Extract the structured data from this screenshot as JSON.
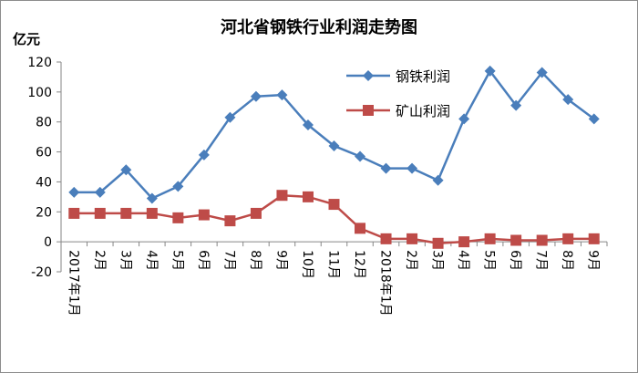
{
  "chart_data": {
    "type": "line",
    "title": "河北省钢铁行业利润走势图",
    "ylabel": "亿元",
    "xlabel": "",
    "ylim": [
      -20,
      120
    ],
    "yticks": [
      -20,
      0,
      20,
      40,
      60,
      80,
      100,
      120
    ],
    "grid": false,
    "legend_position": "top-right",
    "categories": [
      "2017年1月",
      "2月",
      "3月",
      "4月",
      "5月",
      "6月",
      "7月",
      "8月",
      "9月",
      "10月",
      "11月",
      "12月",
      "2018年1月",
      "2月",
      "3月",
      "4月",
      "5月",
      "6月",
      "7月",
      "8月",
      "9月"
    ],
    "series": [
      {
        "name": "钢铁利润",
        "color": "#4a7ebb",
        "marker": "diamond",
        "values": [
          33,
          33,
          48,
          29,
          37,
          58,
          83,
          97,
          98,
          78,
          64,
          57,
          49,
          49,
          41,
          82,
          114,
          91,
          113,
          95,
          82
        ]
      },
      {
        "name": "矿山利润",
        "color": "#be4b48",
        "marker": "square",
        "values": [
          19,
          19,
          19,
          19,
          16,
          18,
          14,
          19,
          31,
          30,
          25,
          9,
          2,
          2,
          -1,
          0,
          2,
          1,
          1,
          2,
          2
        ]
      }
    ]
  }
}
